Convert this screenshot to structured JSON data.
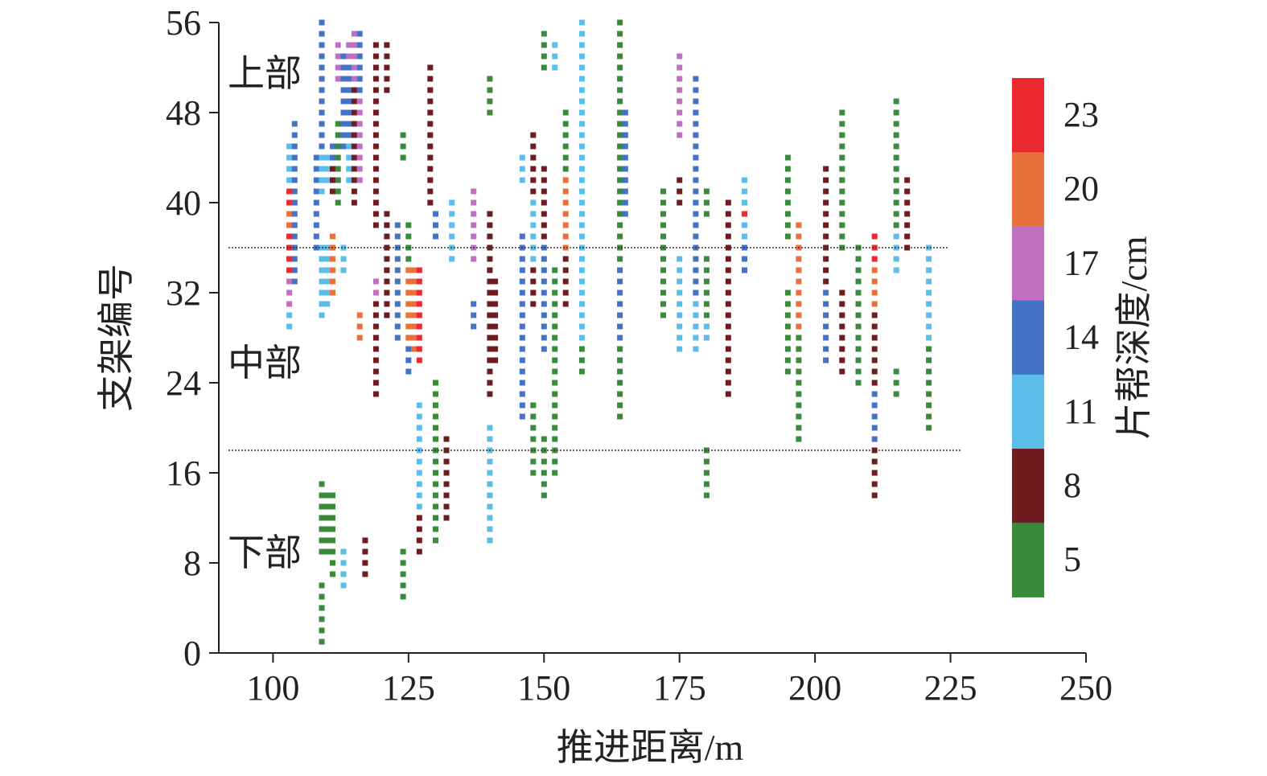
{
  "chart_data": {
    "type": "heatmap",
    "xlabel": "推进距离/m",
    "ylabel": "支架编号",
    "xlim": [
      90,
      250
    ],
    "ylim": [
      0,
      56
    ],
    "xticks": [
      100,
      125,
      150,
      175,
      200,
      225,
      250
    ],
    "yticks": [
      0,
      8,
      16,
      24,
      32,
      40,
      48,
      56
    ],
    "region_labels": [
      "上部",
      "中部",
      "下部"
    ],
    "divider_supports": [
      36,
      18
    ],
    "colorbar": {
      "label": "片帮深度/cm",
      "levels": [
        5,
        8,
        11,
        14,
        17,
        20,
        23
      ],
      "colors": [
        "#3a8a3c",
        "#6e1c20",
        "#5bbde9",
        "#4472c4",
        "#c070c0",
        "#e8703a",
        "#ea2a30"
      ]
    },
    "columns": [
      {
        "x": 103,
        "runs": [
          [
            29,
            30,
            11
          ],
          [
            31,
            33,
            17
          ],
          [
            34,
            37,
            23
          ],
          [
            38,
            39,
            20
          ],
          [
            40,
            41,
            23
          ],
          [
            42,
            45,
            11
          ]
        ]
      },
      {
        "x": 104,
        "runs": [
          [
            33,
            38,
            14
          ],
          [
            39,
            47,
            14
          ]
        ]
      },
      {
        "x": 108,
        "runs": [
          [
            36,
            40,
            14
          ],
          [
            41,
            44,
            14
          ]
        ]
      },
      {
        "x": 109,
        "runs": [
          [
            1,
            6,
            5
          ],
          [
            9,
            15,
            5
          ],
          [
            30,
            36,
            11
          ],
          [
            41,
            44,
            11
          ],
          [
            45,
            56,
            14
          ]
        ]
      },
      {
        "x": 110,
        "runs": [
          [
            9,
            14,
            5
          ],
          [
            31,
            32,
            11
          ],
          [
            33,
            36,
            11
          ],
          [
            42,
            44,
            11
          ]
        ]
      },
      {
        "x": 111,
        "runs": [
          [
            7,
            14,
            5
          ],
          [
            32,
            37,
            20
          ],
          [
            41,
            43,
            8
          ],
          [
            44,
            45,
            14
          ]
        ]
      },
      {
        "x": 112,
        "runs": [
          [
            40,
            47,
            5
          ],
          [
            51,
            54,
            17
          ]
        ]
      },
      {
        "x": 113,
        "runs": [
          [
            6,
            9,
            11
          ],
          [
            34,
            36,
            11
          ],
          [
            45,
            53,
            14
          ]
        ]
      },
      {
        "x": 114,
        "runs": [
          [
            42,
            45,
            11
          ],
          [
            46,
            52,
            14
          ],
          [
            53,
            54,
            17
          ]
        ]
      },
      {
        "x": 115,
        "runs": [
          [
            40,
            50,
            8
          ],
          [
            51,
            55,
            17
          ]
        ]
      },
      {
        "x": 116,
        "runs": [
          [
            28,
            30,
            20
          ],
          [
            42,
            49,
            17
          ],
          [
            50,
            55,
            14
          ]
        ]
      },
      {
        "x": 117,
        "runs": [
          [
            7,
            10,
            8
          ]
        ]
      },
      {
        "x": 119,
        "runs": [
          [
            23,
            31,
            8
          ],
          [
            32,
            33,
            17
          ],
          [
            38,
            54,
            8
          ]
        ]
      },
      {
        "x": 121,
        "runs": [
          [
            30,
            39,
            8
          ],
          [
            50,
            54,
            8
          ]
        ]
      },
      {
        "x": 123,
        "runs": [
          [
            28,
            33,
            14
          ],
          [
            34,
            38,
            14
          ]
        ]
      },
      {
        "x": 124,
        "runs": [
          [
            5,
            9,
            5
          ],
          [
            44,
            46,
            5
          ]
        ]
      },
      {
        "x": 125,
        "runs": [
          [
            25,
            27,
            14
          ],
          [
            28,
            34,
            20
          ],
          [
            35,
            38,
            5
          ]
        ]
      },
      {
        "x": 126,
        "runs": [
          [
            27,
            32,
            20
          ],
          [
            33,
            34,
            20
          ]
        ]
      },
      {
        "x": 127,
        "runs": [
          [
            9,
            12,
            8
          ],
          [
            13,
            22,
            11
          ],
          [
            26,
            34,
            23
          ]
        ]
      },
      {
        "x": 129,
        "runs": [
          [
            40,
            52,
            8
          ]
        ]
      },
      {
        "x": 130,
        "runs": [
          [
            10,
            24,
            5
          ],
          [
            37,
            39,
            14
          ]
        ]
      },
      {
        "x": 132,
        "runs": [
          [
            12,
            19,
            8
          ]
        ]
      },
      {
        "x": 133,
        "runs": [
          [
            35,
            40,
            11
          ]
        ]
      },
      {
        "x": 137,
        "runs": [
          [
            29,
            31,
            14
          ],
          [
            35,
            37,
            17
          ],
          [
            38,
            41,
            17
          ]
        ]
      },
      {
        "x": 140,
        "runs": [
          [
            10,
            20,
            11
          ],
          [
            23,
            39,
            8
          ],
          [
            48,
            51,
            5
          ]
        ]
      },
      {
        "x": 141,
        "runs": [
          [
            26,
            33,
            8
          ]
        ]
      },
      {
        "x": 146,
        "runs": [
          [
            21,
            37,
            14
          ],
          [
            42,
            44,
            11
          ]
        ]
      },
      {
        "x": 148,
        "runs": [
          [
            16,
            22,
            5
          ],
          [
            31,
            34,
            8
          ],
          [
            35,
            40,
            11
          ],
          [
            41,
            46,
            8
          ]
        ]
      },
      {
        "x": 150,
        "runs": [
          [
            14,
            19,
            5
          ],
          [
            27,
            36,
            14
          ],
          [
            37,
            43,
            8
          ],
          [
            52,
            55,
            5
          ]
        ]
      },
      {
        "x": 152,
        "runs": [
          [
            16,
            34,
            5
          ],
          [
            52,
            54,
            11
          ]
        ]
      },
      {
        "x": 154,
        "runs": [
          [
            31,
            35,
            8
          ],
          [
            36,
            42,
            20
          ],
          [
            43,
            48,
            5
          ]
        ]
      },
      {
        "x": 157,
        "runs": [
          [
            25,
            27,
            5
          ],
          [
            28,
            56,
            11
          ]
        ]
      },
      {
        "x": 164,
        "runs": [
          [
            21,
            27,
            5
          ],
          [
            28,
            34,
            14
          ],
          [
            35,
            46,
            5
          ],
          [
            47,
            56,
            5
          ]
        ]
      },
      {
        "x": 165,
        "runs": [
          [
            39,
            48,
            14
          ]
        ]
      },
      {
        "x": 172,
        "runs": [
          [
            30,
            41,
            5
          ]
        ]
      },
      {
        "x": 175,
        "runs": [
          [
            27,
            35,
            11
          ],
          [
            40,
            42,
            8
          ],
          [
            46,
            53,
            17
          ]
        ]
      },
      {
        "x": 178,
        "runs": [
          [
            27,
            31,
            11
          ],
          [
            32,
            51,
            14
          ]
        ]
      },
      {
        "x": 180,
        "runs": [
          [
            28,
            29,
            11
          ],
          [
            30,
            35,
            5
          ],
          [
            14,
            18,
            5
          ],
          [
            39,
            41,
            5
          ]
        ]
      },
      {
        "x": 184,
        "runs": [
          [
            23,
            40,
            8
          ]
        ]
      },
      {
        "x": 187,
        "runs": [
          [
            34,
            36,
            14
          ],
          [
            37,
            38,
            11
          ],
          [
            39,
            39,
            23
          ],
          [
            40,
            42,
            11
          ]
        ]
      },
      {
        "x": 195,
        "runs": [
          [
            25,
            32,
            5
          ],
          [
            37,
            44,
            5
          ]
        ]
      },
      {
        "x": 197,
        "runs": [
          [
            19,
            28,
            5
          ],
          [
            29,
            38,
            20
          ]
        ]
      },
      {
        "x": 202,
        "runs": [
          [
            26,
            32,
            14
          ],
          [
            33,
            43,
            8
          ]
        ]
      },
      {
        "x": 205,
        "runs": [
          [
            25,
            32,
            8
          ],
          [
            36,
            48,
            5
          ]
        ]
      },
      {
        "x": 208,
        "runs": [
          [
            24,
            36,
            5
          ]
        ]
      },
      {
        "x": 211,
        "runs": [
          [
            14,
            18,
            8
          ],
          [
            19,
            23,
            14
          ],
          [
            24,
            30,
            8
          ],
          [
            31,
            34,
            20
          ],
          [
            35,
            37,
            23
          ]
        ]
      },
      {
        "x": 215,
        "runs": [
          [
            23,
            25,
            5
          ],
          [
            34,
            37,
            11
          ],
          [
            38,
            49,
            5
          ]
        ]
      },
      {
        "x": 217,
        "runs": [
          [
            36,
            42,
            8
          ]
        ]
      },
      {
        "x": 221,
        "runs": [
          [
            20,
            27,
            5
          ],
          [
            28,
            36,
            11
          ]
        ]
      }
    ]
  }
}
